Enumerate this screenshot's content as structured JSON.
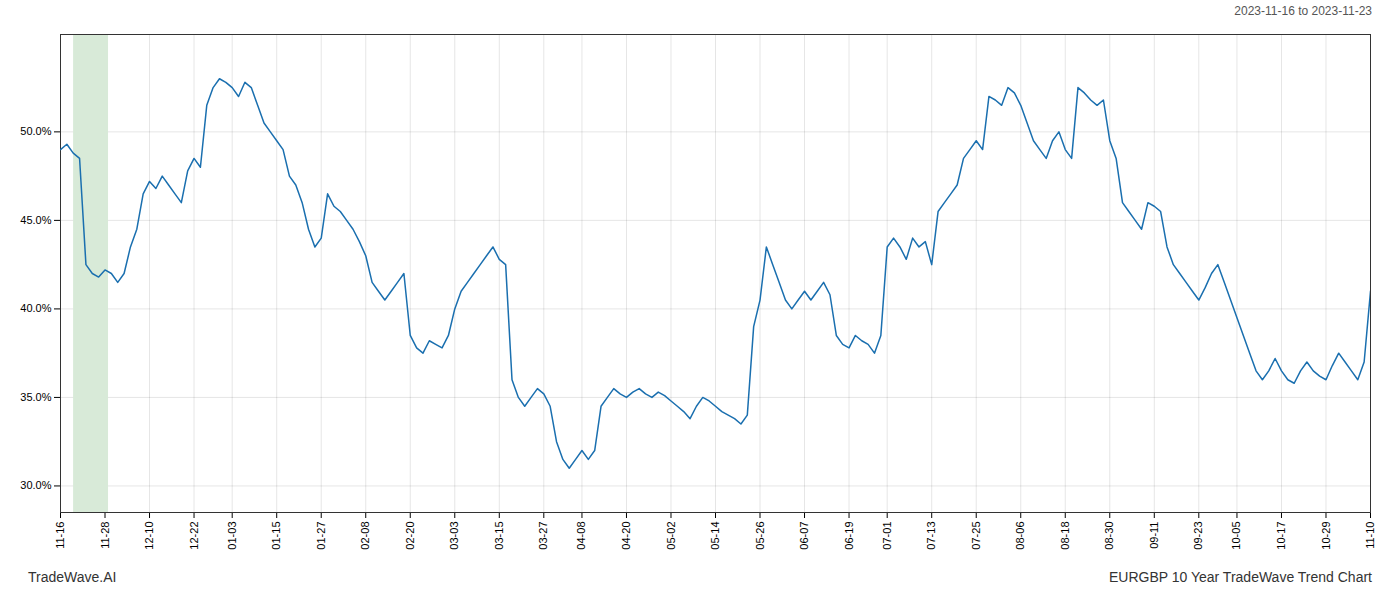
{
  "chart_data": {
    "type": "line",
    "title": "EURGBP 10 Year TradeWave Trend Chart",
    "subtitle": "2023-11-16 to 2023-11-23",
    "annotations": [
      "TradeWave.AI"
    ],
    "color": "#1a6faf",
    "grid": true,
    "ylim": [
      28.5,
      55.5
    ],
    "yticks": [
      {
        "value": 30.0,
        "label": "30.0%"
      },
      {
        "value": 35.0,
        "label": "35.0%"
      },
      {
        "value": 40.0,
        "label": "40.0%"
      },
      {
        "value": 45.0,
        "label": "45.0%"
      },
      {
        "value": 50.0,
        "label": "50.0%"
      }
    ],
    "highlight": {
      "start": 2.06,
      "end": 7.553333333333334,
      "color": "#d8ead8"
    },
    "categories": [
      "11-16",
      null,
      null,
      null,
      null,
      null,
      null,
      "11-28",
      null,
      null,
      null,
      null,
      null,
      null,
      "12-10",
      null,
      null,
      null,
      null,
      null,
      null,
      "12-22",
      null,
      null,
      null,
      null,
      null,
      "01-03",
      null,
      null,
      null,
      null,
      null,
      null,
      "01-15",
      null,
      null,
      null,
      null,
      null,
      null,
      "01-27",
      null,
      null,
      null,
      null,
      null,
      null,
      "02-08",
      null,
      null,
      null,
      null,
      null,
      null,
      "02-20",
      null,
      null,
      null,
      null,
      null,
      null,
      "03-03",
      null,
      null,
      null,
      null,
      null,
      null,
      "03-15",
      null,
      null,
      null,
      null,
      null,
      null,
      "03-27",
      null,
      null,
      null,
      null,
      null,
      "04-08",
      null,
      null,
      null,
      null,
      null,
      null,
      "04-20",
      null,
      null,
      null,
      null,
      null,
      null,
      "05-02",
      null,
      null,
      null,
      null,
      null,
      null,
      "05-14",
      null,
      null,
      null,
      null,
      null,
      null,
      "05-26",
      null,
      null,
      null,
      null,
      null,
      null,
      "06-07",
      null,
      null,
      null,
      null,
      null,
      null,
      "06-19",
      null,
      null,
      null,
      null,
      null,
      "07-01",
      null,
      null,
      null,
      null,
      null,
      null,
      "07-13",
      null,
      null,
      null,
      null,
      null,
      null,
      "07-25",
      null,
      null,
      null,
      null,
      null,
      null,
      "08-06",
      null,
      null,
      null,
      null,
      null,
      null,
      "08-18",
      null,
      null,
      null,
      null,
      null,
      null,
      "08-30",
      null,
      null,
      null,
      null,
      null,
      null,
      "09-11",
      null,
      null,
      null,
      null,
      null,
      null,
      "09-23",
      null,
      null,
      null,
      null,
      null,
      "10-05",
      null,
      null,
      null,
      null,
      null,
      null,
      "10-17",
      null,
      null,
      null,
      null,
      null,
      null,
      "10-29",
      null,
      null,
      null,
      null,
      null,
      null,
      "11-10"
    ],
    "values": [
      49.0,
      49.3,
      48.8,
      48.5,
      42.5,
      42.0,
      41.8,
      42.2,
      42.0,
      41.5,
      42.0,
      43.5,
      44.5,
      46.5,
      47.2,
      46.8,
      47.5,
      47.0,
      46.5,
      46.0,
      47.8,
      48.5,
      48.0,
      51.5,
      52.5,
      53.0,
      52.8,
      52.5,
      52.0,
      52.8,
      52.5,
      51.5,
      50.5,
      50.0,
      49.5,
      49.0,
      47.5,
      47.0,
      46.0,
      44.5,
      43.5,
      44.0,
      46.5,
      45.8,
      45.5,
      45.0,
      44.5,
      43.8,
      43.0,
      41.5,
      41.0,
      40.5,
      41.0,
      41.5,
      42.0,
      38.5,
      37.8,
      37.5,
      38.2,
      38.0,
      37.8,
      38.5,
      40.0,
      41.0,
      41.5,
      42.0,
      42.5,
      43.0,
      43.5,
      42.8,
      42.5,
      36.0,
      35.0,
      34.5,
      35.0,
      35.5,
      35.2,
      34.5,
      32.5,
      31.5,
      31.0,
      31.5,
      32.0,
      31.5,
      32.0,
      34.5,
      35.0,
      35.5,
      35.2,
      35.0,
      35.3,
      35.5,
      35.2,
      35.0,
      35.3,
      35.1,
      34.8,
      34.5,
      34.2,
      33.8,
      34.5,
      35.0,
      34.8,
      34.5,
      34.2,
      34.0,
      33.8,
      33.5,
      34.0,
      39.0,
      40.5,
      43.5,
      42.5,
      41.5,
      40.5,
      40.0,
      40.5,
      41.0,
      40.5,
      41.0,
      41.5,
      40.8,
      38.5,
      38.0,
      37.8,
      38.5,
      38.2,
      38.0,
      37.5,
      38.5,
      43.5,
      44.0,
      43.5,
      42.8,
      44.0,
      43.5,
      43.8,
      42.5,
      45.5,
      46.0,
      46.5,
      47.0,
      48.5,
      49.0,
      49.5,
      49.0,
      52.0,
      51.8,
      51.5,
      52.5,
      52.2,
      51.5,
      50.5,
      49.5,
      49.0,
      48.5,
      49.5,
      50.0,
      49.0,
      48.5,
      52.5,
      52.2,
      51.8,
      51.5,
      51.8,
      49.5,
      48.5,
      46.0,
      45.5,
      45.0,
      44.5,
      46.0,
      45.8,
      45.5,
      43.5,
      42.5,
      42.0,
      41.5,
      41.0,
      40.5,
      41.2,
      42.0,
      42.5,
      41.5,
      40.5,
      39.5,
      38.5,
      37.5,
      36.5,
      36.0,
      36.5,
      37.2,
      36.5,
      36.0,
      35.8,
      36.5,
      37.0,
      36.5,
      36.2,
      36.0,
      36.8,
      37.5,
      37.0,
      36.5,
      36.0,
      37.0,
      41.0
    ]
  }
}
